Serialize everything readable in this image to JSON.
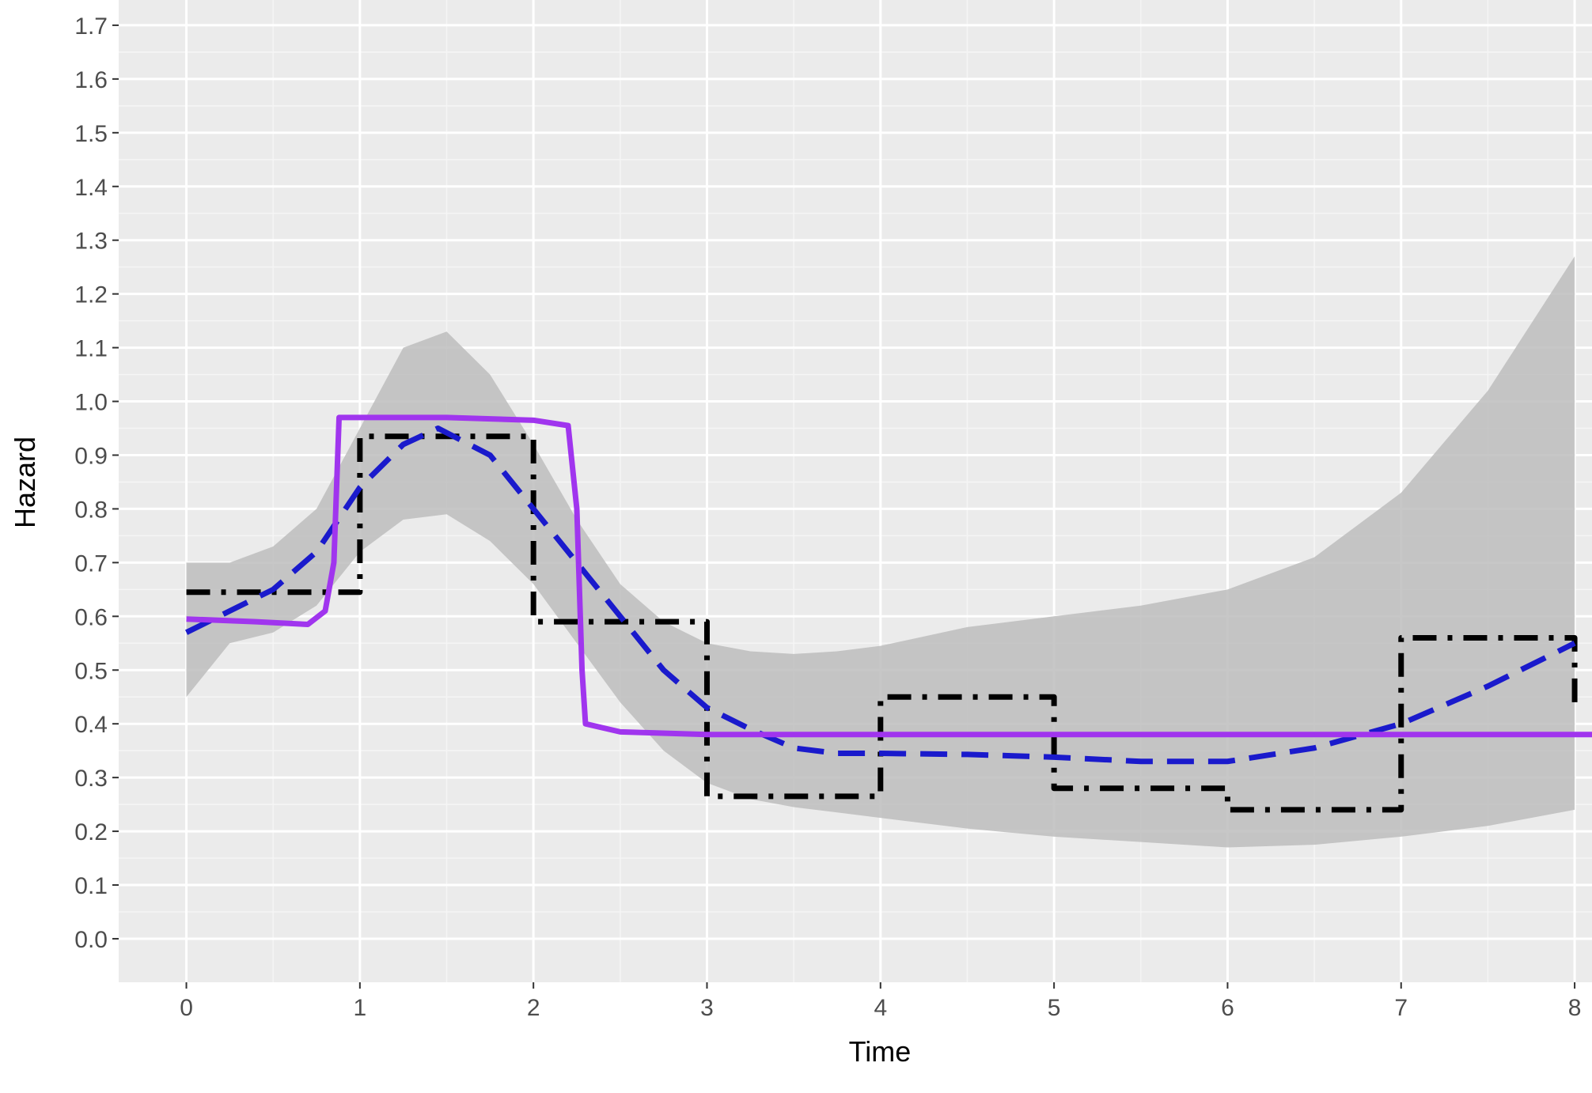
{
  "chart_data": {
    "type": "line",
    "xlabel": "Time",
    "ylabel": "Hazard",
    "xlim": [
      -0.39,
      8.1
    ],
    "ylim": [
      -0.081,
      1.747
    ],
    "xticks": [
      0,
      1,
      2,
      3,
      4,
      5,
      6,
      7,
      8
    ],
    "yticks": [
      {
        "value": 0,
        "label": "0.0"
      },
      0.1,
      0.2,
      0.3,
      0.4,
      0.5,
      0.6,
      0.7,
      0.8,
      0.9,
      {
        "value": 1,
        "label": "1.0"
      },
      1.1,
      1.2,
      1.3,
      1.4,
      1.5,
      1.6,
      1.7
    ],
    "xminor": [
      0.5,
      1.5,
      2.5,
      3.5,
      4.5,
      5.5,
      6.5,
      7.5
    ],
    "yminor": [
      0.05,
      0.15,
      0.25,
      0.35,
      0.45,
      0.55,
      0.65,
      0.75,
      0.85,
      0.95,
      1.05,
      1.15,
      1.25,
      1.35,
      1.45,
      1.55,
      1.65
    ],
    "grid": true,
    "band": {
      "color": "#bdbdbd",
      "x": [
        0,
        0.25,
        0.5,
        0.75,
        1,
        1.25,
        1.5,
        1.75,
        2,
        2.25,
        2.5,
        2.75,
        3,
        3.25,
        3.5,
        3.75,
        4,
        4.5,
        5,
        5.5,
        6,
        6.5,
        7,
        7.5,
        8
      ],
      "upper": [
        0.7,
        0.7,
        0.73,
        0.8,
        0.95,
        1.1,
        1.13,
        1.05,
        0.92,
        0.78,
        0.66,
        0.59,
        0.55,
        0.535,
        0.53,
        0.535,
        0.545,
        0.58,
        0.6,
        0.62,
        0.65,
        0.71,
        0.83,
        1.02,
        1.27
      ],
      "lower": [
        0.45,
        0.55,
        0.57,
        0.62,
        0.72,
        0.78,
        0.79,
        0.74,
        0.66,
        0.55,
        0.44,
        0.35,
        0.29,
        0.26,
        0.245,
        0.235,
        0.225,
        0.205,
        0.19,
        0.18,
        0.17,
        0.175,
        0.19,
        0.21,
        0.24
      ]
    },
    "series": [
      {
        "color": "#000000",
        "dash": "dashdot",
        "x": [
          0,
          1,
          1,
          2,
          2,
          3,
          3,
          4,
          4,
          5,
          5,
          6,
          6,
          7,
          7,
          8,
          8
        ],
        "values": [
          0.645,
          0.645,
          0.935,
          0.935,
          0.59,
          0.59,
          0.265,
          0.265,
          0.45,
          0.45,
          0.28,
          0.28,
          0.24,
          0.24,
          0.56,
          0.56,
          0.42
        ]
      },
      {
        "color": "#1a1acc",
        "dash": "dashed",
        "x": [
          0,
          0.25,
          0.5,
          0.75,
          1,
          1.25,
          1.45,
          1.75,
          2,
          2.25,
          2.5,
          2.75,
          3,
          3.25,
          3.5,
          3.75,
          4,
          4.5,
          5,
          5.5,
          6,
          6.5,
          7,
          7.5,
          8
        ],
        "values": [
          0.57,
          0.61,
          0.65,
          0.72,
          0.84,
          0.92,
          0.95,
          0.9,
          0.8,
          0.7,
          0.6,
          0.5,
          0.43,
          0.39,
          0.355,
          0.345,
          0.345,
          0.343,
          0.338,
          0.33,
          0.33,
          0.355,
          0.4,
          0.47,
          0.55
        ]
      },
      {
        "color": "#a035ee",
        "dash": "solid",
        "x": [
          0,
          0.4,
          0.7,
          0.8,
          0.85,
          0.88,
          1,
          1.5,
          2,
          2.2,
          2.25,
          2.28,
          2.3,
          2.5,
          3,
          8.1
        ],
        "values": [
          0.595,
          0.59,
          0.585,
          0.61,
          0.7,
          0.97,
          0.97,
          0.97,
          0.965,
          0.955,
          0.8,
          0.5,
          0.4,
          0.385,
          0.38,
          0.38
        ]
      }
    ]
  }
}
